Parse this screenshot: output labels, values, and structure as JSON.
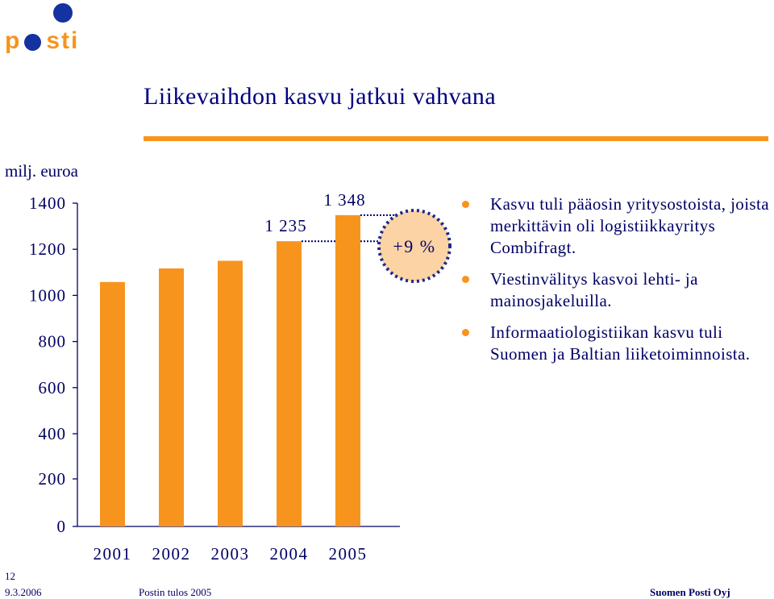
{
  "logo": {
    "text": "p sti"
  },
  "title": "Liikevaihdon kasvu jatkui vahvana",
  "unit_label": "milj. euroa",
  "chart_data": {
    "type": "bar",
    "categories": [
      "2001",
      "2002",
      "2003",
      "2004",
      "2005"
    ],
    "values": [
      1058,
      1117,
      1150,
      1235,
      1348
    ],
    "data_labels": [
      "",
      "",
      "",
      "1 235",
      "1 348"
    ],
    "ylim": [
      0,
      1400
    ],
    "y_ticks": [
      0,
      200,
      400,
      600,
      800,
      1000,
      1200,
      1400
    ],
    "axis_break": true,
    "bar_color": "#f7941d",
    "annotation": "+9 %",
    "grid": false
  },
  "bullets": [
    "Kasvu tuli pääosin yritysostoista, joista merkittävin oli logistiikkayritys Combifragt.",
    "Viestinvälitys kasvoi lehti- ja mainosjakeluilla.",
    "Informaatiologistiikan kasvu tuli Suomen ja Baltian liiketoiminnoista."
  ],
  "footer": {
    "page_number": "12",
    "date": "9.3.2006",
    "center": "Postin tulos 2005",
    "right": "Suomen Posti Oyj"
  },
  "colors": {
    "accent": "#f7941d",
    "text": "#000066",
    "logo_blue": "#1432a0"
  }
}
